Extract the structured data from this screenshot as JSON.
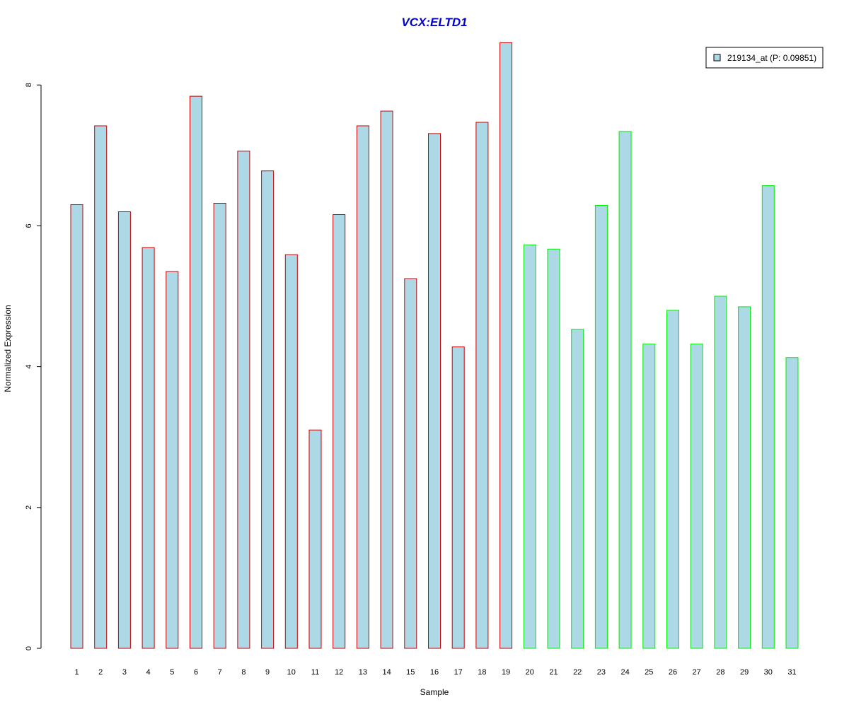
{
  "chart_data": {
    "type": "bar",
    "title": "VCX:ELTD1",
    "xlabel": "Sample",
    "ylabel": "Normalized Expression",
    "ylim": [
      0,
      8.6
    ],
    "yticks": [
      "0",
      "2",
      "4",
      "6",
      "8"
    ],
    "categories": [
      "1",
      "2",
      "3",
      "4",
      "5",
      "6",
      "7",
      "8",
      "9",
      "10",
      "11",
      "12",
      "13",
      "14",
      "15",
      "16",
      "17",
      "18",
      "19",
      "20",
      "21",
      "22",
      "23",
      "24",
      "25",
      "26",
      "27",
      "28",
      "29",
      "30",
      "31"
    ],
    "series": [
      {
        "name": "219134_at (P: 0.09851)",
        "values": [
          6.3,
          7.42,
          6.2,
          5.69,
          5.35,
          7.84,
          6.32,
          7.06,
          6.78,
          5.59,
          3.1,
          6.16,
          7.42,
          7.63,
          5.25,
          7.31,
          4.28,
          7.47,
          8.6,
          5.73,
          5.67,
          4.53,
          6.29,
          7.34,
          4.32,
          4.8,
          4.32,
          5.0,
          4.85,
          6.57,
          4.13
        ],
        "fill": "#add8e6"
      }
    ],
    "group_outline_colors": [
      "#cc0000",
      "#cc0000",
      "#cc0000",
      "#cc0000",
      "#cc0000",
      "#cc0000",
      "#cc0000",
      "#cc0000",
      "#cc0000",
      "#cc0000",
      "#cc0000",
      "#cc0000",
      "#cc0000",
      "#cc0000",
      "#cc0000",
      "#cc0000",
      "#cc0000",
      "#cc0000",
      "#cc0000",
      "#00ee00",
      "#00ee00",
      "#00ee00",
      "#00ee00",
      "#00ee00",
      "#00ee00",
      "#00ee00",
      "#00ee00",
      "#00ee00",
      "#00ee00",
      "#00ee00",
      "#00ee00"
    ],
    "title_color": "#0000cc",
    "legend_position": "top-right",
    "grid": false
  }
}
